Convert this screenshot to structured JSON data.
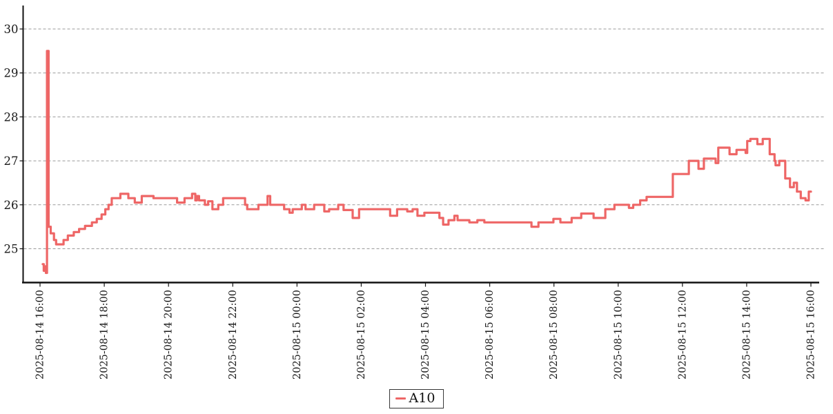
{
  "page": {
    "background": "#ffffff"
  },
  "legend": {
    "label": "A10"
  },
  "chart_data": {
    "type": "line",
    "step": "after",
    "title": "",
    "xlabel": "",
    "ylabel": "",
    "legend_position": "bottom-center",
    "grid": "horizontal-dashed",
    "series": [
      {
        "name": "A10",
        "color": "#ee6666",
        "line_width": 3.2,
        "points_minutes_value": [
          [
            5,
            24.65
          ],
          [
            7,
            24.5
          ],
          [
            9,
            24.6
          ],
          [
            11,
            24.45
          ],
          [
            13,
            29.5
          ],
          [
            16,
            25.5
          ],
          [
            20,
            25.35
          ],
          [
            26,
            25.2
          ],
          [
            30,
            25.1
          ],
          [
            44,
            25.2
          ],
          [
            52,
            25.3
          ],
          [
            63,
            25.38
          ],
          [
            73,
            25.45
          ],
          [
            84,
            25.52
          ],
          [
            97,
            25.6
          ],
          [
            106,
            25.68
          ],
          [
            115,
            25.78
          ],
          [
            122,
            25.9
          ],
          [
            128,
            26.0
          ],
          [
            134,
            26.15
          ],
          [
            150,
            26.25
          ],
          [
            165,
            26.15
          ],
          [
            177,
            26.05
          ],
          [
            190,
            26.2
          ],
          [
            212,
            26.15
          ],
          [
            256,
            26.05
          ],
          [
            270,
            26.15
          ],
          [
            284,
            26.25
          ],
          [
            290,
            26.1
          ],
          [
            293,
            26.2
          ],
          [
            297,
            26.1
          ],
          [
            308,
            26.0
          ],
          [
            314,
            26.08
          ],
          [
            322,
            25.9
          ],
          [
            333,
            26.0
          ],
          [
            342,
            26.15
          ],
          [
            383,
            26.0
          ],
          [
            387,
            25.9
          ],
          [
            408,
            26.0
          ],
          [
            425,
            26.2
          ],
          [
            430,
            26.0
          ],
          [
            456,
            25.9
          ],
          [
            466,
            25.82
          ],
          [
            472,
            25.9
          ],
          [
            489,
            26.0
          ],
          [
            496,
            25.9
          ],
          [
            512,
            26.0
          ],
          [
            531,
            25.85
          ],
          [
            540,
            25.9
          ],
          [
            557,
            26.0
          ],
          [
            567,
            25.88
          ],
          [
            584,
            25.7
          ],
          [
            596,
            25.9
          ],
          [
            654,
            25.75
          ],
          [
            667,
            25.9
          ],
          [
            686,
            25.85
          ],
          [
            696,
            25.9
          ],
          [
            705,
            25.75
          ],
          [
            718,
            25.82
          ],
          [
            746,
            25.7
          ],
          [
            753,
            25.55
          ],
          [
            763,
            25.65
          ],
          [
            774,
            25.75
          ],
          [
            780,
            25.65
          ],
          [
            802,
            25.6
          ],
          [
            817,
            25.65
          ],
          [
            830,
            25.6
          ],
          [
            918,
            25.5
          ],
          [
            931,
            25.6
          ],
          [
            959,
            25.68
          ],
          [
            972,
            25.6
          ],
          [
            993,
            25.7
          ],
          [
            1011,
            25.8
          ],
          [
            1034,
            25.7
          ],
          [
            1056,
            25.9
          ],
          [
            1073,
            26.0
          ],
          [
            1100,
            25.93
          ],
          [
            1108,
            26.0
          ],
          [
            1121,
            26.1
          ],
          [
            1133,
            26.18
          ],
          [
            1182,
            26.7
          ],
          [
            1212,
            27.0
          ],
          [
            1230,
            26.82
          ],
          [
            1240,
            27.05
          ],
          [
            1262,
            26.95
          ],
          [
            1267,
            27.3
          ],
          [
            1288,
            27.15
          ],
          [
            1301,
            27.25
          ],
          [
            1318,
            27.18
          ],
          [
            1321,
            27.45
          ],
          [
            1327,
            27.5
          ],
          [
            1340,
            27.38
          ],
          [
            1350,
            27.5
          ],
          [
            1363,
            27.15
          ],
          [
            1372,
            27.0
          ],
          [
            1374,
            26.9
          ],
          [
            1381,
            27.0
          ],
          [
            1392,
            26.6
          ],
          [
            1401,
            26.4
          ],
          [
            1408,
            26.5
          ],
          [
            1414,
            26.3
          ],
          [
            1421,
            26.15
          ],
          [
            1430,
            26.1
          ],
          [
            1436,
            26.3
          ],
          [
            1440,
            26.3
          ]
        ]
      }
    ],
    "x_axis": {
      "tick_labels": [
        "2025-08-14 16:00",
        "2025-08-14 18:00",
        "2025-08-14 20:00",
        "2025-08-14 22:00",
        "2025-08-15 00:00",
        "2025-08-15 02:00",
        "2025-08-15 04:00",
        "2025-08-15 06:00",
        "2025-08-15 08:00",
        "2025-08-15 10:00",
        "2025-08-15 12:00",
        "2025-08-15 14:00",
        "2025-08-15 16:00"
      ],
      "tick_interval_minutes": 120,
      "range_minutes": [
        0,
        1440
      ],
      "label_rotation_deg": -90
    },
    "y_axis": {
      "tick_values": [
        25,
        26,
        27,
        28,
        29,
        30
      ],
      "min": 24.2,
      "max": 30.5
    },
    "colors": {
      "grid": "#999999",
      "axis": "#111111",
      "text": "#1a1a1a"
    }
  }
}
